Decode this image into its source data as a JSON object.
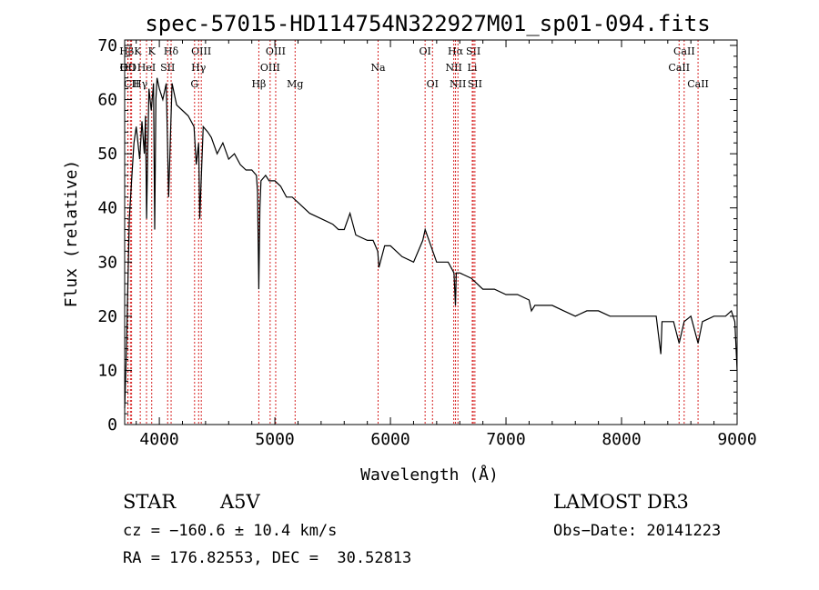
{
  "chart_data": {
    "type": "line",
    "title": "spec-57015-HD114754N322927M01_sp01-094.fits",
    "xlabel": "Wavelength (Å)",
    "ylabel": "Flux (relative)",
    "xlim": [
      3700,
      9000
    ],
    "ylim": [
      0,
      71
    ],
    "xticks": [
      4000,
      5000,
      6000,
      7000,
      8000,
      9000
    ],
    "yticks": [
      0,
      10,
      20,
      30,
      40,
      50,
      60,
      70
    ],
    "series": [
      {
        "name": "flux",
        "x": [
          3700,
          3710,
          3720,
          3730,
          3740,
          3760,
          3780,
          3800,
          3830,
          3850,
          3870,
          3880,
          3890,
          3900,
          3910,
          3930,
          3950,
          3960,
          3970,
          3980,
          4000,
          4030,
          4060,
          4080,
          4100,
          4110,
          4130,
          4150,
          4200,
          4250,
          4300,
          4320,
          4340,
          4350,
          4380,
          4420,
          4450,
          4500,
          4550,
          4600,
          4650,
          4700,
          4750,
          4800,
          4840,
          4850,
          4861,
          4870,
          4880,
          4920,
          4950,
          5000,
          5050,
          5100,
          5150,
          5200,
          5300,
          5400,
          5500,
          5550,
          5600,
          5650,
          5700,
          5800,
          5850,
          5890,
          5900,
          5950,
          6000,
          6100,
          6200,
          6280,
          6300,
          6400,
          6500,
          6550,
          6563,
          6570,
          6600,
          6700,
          6800,
          6900,
          7000,
          7100,
          7200,
          7220,
          7250,
          7300,
          7400,
          7500,
          7600,
          7700,
          7800,
          7900,
          8000,
          8100,
          8200,
          8300,
          8340,
          8350,
          8400,
          8450,
          8498,
          8542,
          8600,
          8662,
          8700,
          8800,
          8900,
          8950,
          8980,
          9000
        ],
        "values": [
          3,
          10,
          18,
          28,
          38,
          45,
          52,
          55,
          49,
          56,
          50,
          57,
          38,
          51,
          62,
          58,
          63,
          36,
          60,
          64,
          62,
          60,
          63,
          42,
          56,
          63,
          61,
          59,
          58,
          57,
          55,
          48,
          52,
          38,
          55,
          54,
          53,
          50,
          52,
          49,
          50,
          48,
          47,
          47,
          46,
          43,
          25,
          40,
          45,
          46,
          45,
          45,
          44,
          42,
          42,
          41,
          39,
          38,
          37,
          36,
          36,
          39,
          35,
          34,
          34,
          32,
          29,
          33,
          33,
          31,
          30,
          34,
          36,
          30,
          30,
          28,
          22,
          28,
          28,
          27,
          25,
          25,
          24,
          24,
          23,
          21,
          22,
          22,
          22,
          21,
          20,
          21,
          21,
          20,
          20,
          20,
          20,
          20,
          13,
          19,
          19,
          19,
          15,
          19,
          20,
          15,
          19,
          20,
          20,
          21,
          19,
          10
        ]
      }
    ],
    "line_markers": [
      {
        "label": "HO",
        "x": 3729,
        "row": 1
      },
      {
        "label": "HβK",
        "x": 3750,
        "row": 0
      },
      {
        "label": "OII",
        "x": 3727,
        "row": 1
      },
      {
        "label": "HeI",
        "x": 3889,
        "row": 1
      },
      {
        "label": "SII",
        "x": 4072,
        "row": 1
      },
      {
        "label": "CII",
        "x": 3760,
        "row": 2
      },
      {
        "label": "Hγ",
        "x": 3835,
        "row": 2
      },
      {
        "label": "Hδ",
        "x": 4102,
        "row": 0
      },
      {
        "label": "K",
        "x": 3934,
        "row": 0
      },
      {
        "label": "OIII",
        "x": 4363,
        "row": 0
      },
      {
        "label": "Hγ",
        "x": 4340,
        "row": 1
      },
      {
        "label": "G",
        "x": 4305,
        "row": 2
      },
      {
        "label": "OIII",
        "x": 5007,
        "row": 0
      },
      {
        "label": "OIII",
        "x": 4959,
        "row": 1
      },
      {
        "label": "Hβ",
        "x": 4861,
        "row": 2
      },
      {
        "label": "Mg",
        "x": 5175,
        "row": 2
      },
      {
        "label": "Na",
        "x": 5893,
        "row": 1
      },
      {
        "label": "OI",
        "x": 6300,
        "row": 0
      },
      {
        "label": "OI",
        "x": 6364,
        "row": 2
      },
      {
        "label": "Hα",
        "x": 6563,
        "row": 0
      },
      {
        "label": "SII",
        "x": 6717,
        "row": 0
      },
      {
        "label": "NII",
        "x": 6548,
        "row": 1
      },
      {
        "label": "Li",
        "x": 6708,
        "row": 1
      },
      {
        "label": "NII",
        "x": 6584,
        "row": 2
      },
      {
        "label": "SII",
        "x": 6731,
        "row": 2
      },
      {
        "label": "CaII",
        "x": 8542,
        "row": 0
      },
      {
        "label": "CaII",
        "x": 8498,
        "row": 1
      },
      {
        "label": "CaII",
        "x": 8662,
        "row": 2
      }
    ],
    "colors": {
      "spectrum": "#000000",
      "marker": "#d62020",
      "axis": "#000000"
    }
  },
  "info": {
    "object_class": "STAR",
    "subclass": "A5V",
    "survey": "LAMOST DR3",
    "cz": "cz = −160.6 ± 10.4 km/s",
    "obs_date": "Obs−Date: 20141223",
    "coords": "RA = 176.82553, DEC =  30.52813"
  }
}
